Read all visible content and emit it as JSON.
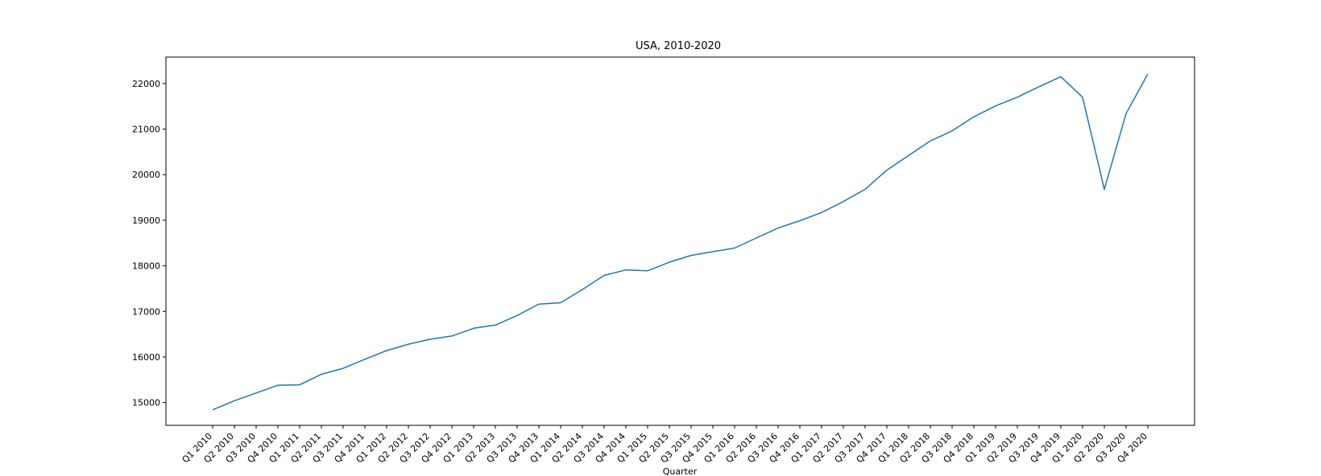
{
  "chart_data": {
    "type": "line",
    "title": "USA, 2010-2020",
    "xlabel": "Quarter",
    "ylabel": "",
    "categories": [
      "Q1 2010",
      "Q2 2010",
      "Q3 2010",
      "Q4 2010",
      "Q1 2011",
      "Q2 2011",
      "Q3 2011",
      "Q4 2011",
      "Q1 2012",
      "Q2 2012",
      "Q3 2012",
      "Q4 2012",
      "Q1 2013",
      "Q2 2013",
      "Q3 2013",
      "Q4 2013",
      "Q1 2014",
      "Q2 2014",
      "Q3 2014",
      "Q4 2014",
      "Q1 2015",
      "Q2 2015",
      "Q3 2015",
      "Q4 2015",
      "Q1 2016",
      "Q2 2016",
      "Q3 2016",
      "Q4 2016",
      "Q1 2017",
      "Q2 2017",
      "Q3 2017",
      "Q4 2017",
      "Q1 2018",
      "Q2 2018",
      "Q3 2018",
      "Q4 2018",
      "Q1 2019",
      "Q2 2019",
      "Q3 2019",
      "Q4 2019",
      "Q1 2020",
      "Q2 2020",
      "Q3 2020",
      "Q4 2020"
    ],
    "series": [
      {
        "color": "#1f77b4",
        "values": [
          14840,
          15040,
          15210,
          15380,
          15390,
          15620,
          15750,
          15950,
          16140,
          16280,
          16390,
          16460,
          16630,
          16700,
          16910,
          17160,
          17190,
          17480,
          17790,
          17910,
          17890,
          18080,
          18230,
          18310,
          18390,
          18610,
          18830,
          18990,
          19170,
          19410,
          19680,
          20100,
          20420,
          20740,
          20960,
          21270,
          21510,
          21700,
          21930,
          22150,
          21700,
          19680,
          21340,
          22210
        ]
      }
    ],
    "yticks": [
      15000,
      16000,
      17000,
      18000,
      19000,
      20000,
      21000,
      22000
    ],
    "ylim": [
      14500,
      22580
    ],
    "grid": false,
    "legend": "none"
  }
}
